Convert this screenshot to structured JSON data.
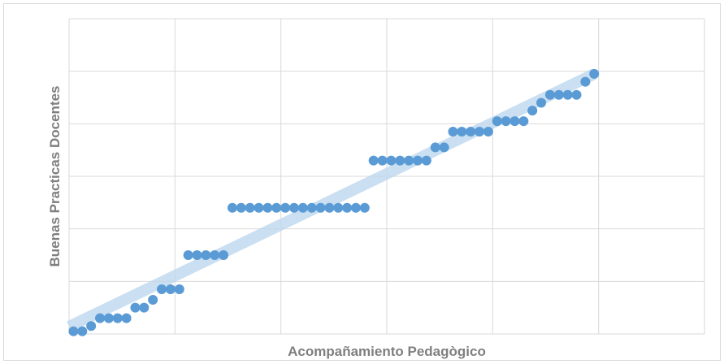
{
  "chart_data": {
    "type": "scatter",
    "xlabel": "Acompañamiento Pedagògico",
    "ylabel": "Buenas Practicas Docentes",
    "series": [
      {
        "color": "#5b9bd5",
        "x": [
          0.5,
          1.5,
          2.5,
          3.5,
          4.5,
          5.5,
          6.5,
          7.5,
          8.5,
          9.5,
          10.5,
          11.5,
          12.5,
          13.5,
          14.5,
          15.5,
          16.5,
          17.5,
          18.5,
          19.5,
          20.5,
          21.5,
          22.5,
          23.5,
          24.5,
          25.5,
          26.5,
          27.5,
          28.5,
          29.5,
          30.5,
          31.5,
          32.5,
          33.5,
          34.5,
          35.5,
          36.5,
          37.5,
          38.5,
          39.5,
          40.5,
          41.5,
          42.5,
          43.5,
          44.5,
          45.5,
          46.5,
          47.5,
          48.5,
          49.5,
          50.5,
          51.5,
          52.5,
          53.5,
          54.5,
          55.5,
          56.5,
          57.5,
          58.5,
          59.5
        ],
        "values": [
          0.5,
          0.5,
          1.5,
          3,
          3,
          3,
          3,
          5,
          5,
          6.5,
          8.5,
          8.5,
          8.5,
          15,
          15,
          15,
          15,
          15,
          24,
          24,
          24,
          24,
          24,
          24,
          24,
          24,
          24,
          24,
          24,
          24,
          24,
          24,
          24,
          24,
          33,
          33,
          33,
          33,
          33,
          33,
          33,
          35.5,
          35.5,
          38.5,
          38.5,
          38.5,
          38.5,
          38.5,
          40.5,
          40.5,
          40.5,
          40.5,
          42.5,
          44,
          45.5,
          45.5,
          45.5,
          45.5,
          48,
          49.5
        ]
      }
    ],
    "trendline": {
      "color": "#bdd7ee"
    },
    "xlim": [
      0,
      72
    ],
    "xticks": [
      0,
      12,
      24,
      36,
      48,
      60,
      72
    ],
    "ylim": [
      0,
      60
    ],
    "yticks": [
      0,
      10,
      20,
      30,
      40,
      50,
      60
    ],
    "grid": true
  }
}
